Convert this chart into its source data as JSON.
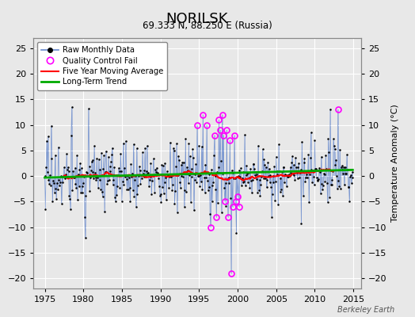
{
  "title": "NORILSK",
  "subtitle": "69.333 N, 88.250 E (Russia)",
  "ylabel_right": "Temperature Anomaly (°C)",
  "watermark": "Berkeley Earth",
  "xlim": [
    1973.5,
    2016
  ],
  "ylim": [
    -22,
    27
  ],
  "yticks": [
    -20,
    -15,
    -10,
    -5,
    0,
    5,
    10,
    15,
    20,
    25
  ],
  "xticks": [
    1975,
    1980,
    1985,
    1990,
    1995,
    2000,
    2005,
    2010,
    2015
  ],
  "background_color": "#e8e8e8",
  "grid_color": "#ffffff",
  "raw_line_color": "#6688cc",
  "raw_dot_color": "#000000",
  "qc_color": "#ff00ff",
  "ma_color": "#ff0000",
  "trend_color": "#00aa00",
  "seed": 17
}
